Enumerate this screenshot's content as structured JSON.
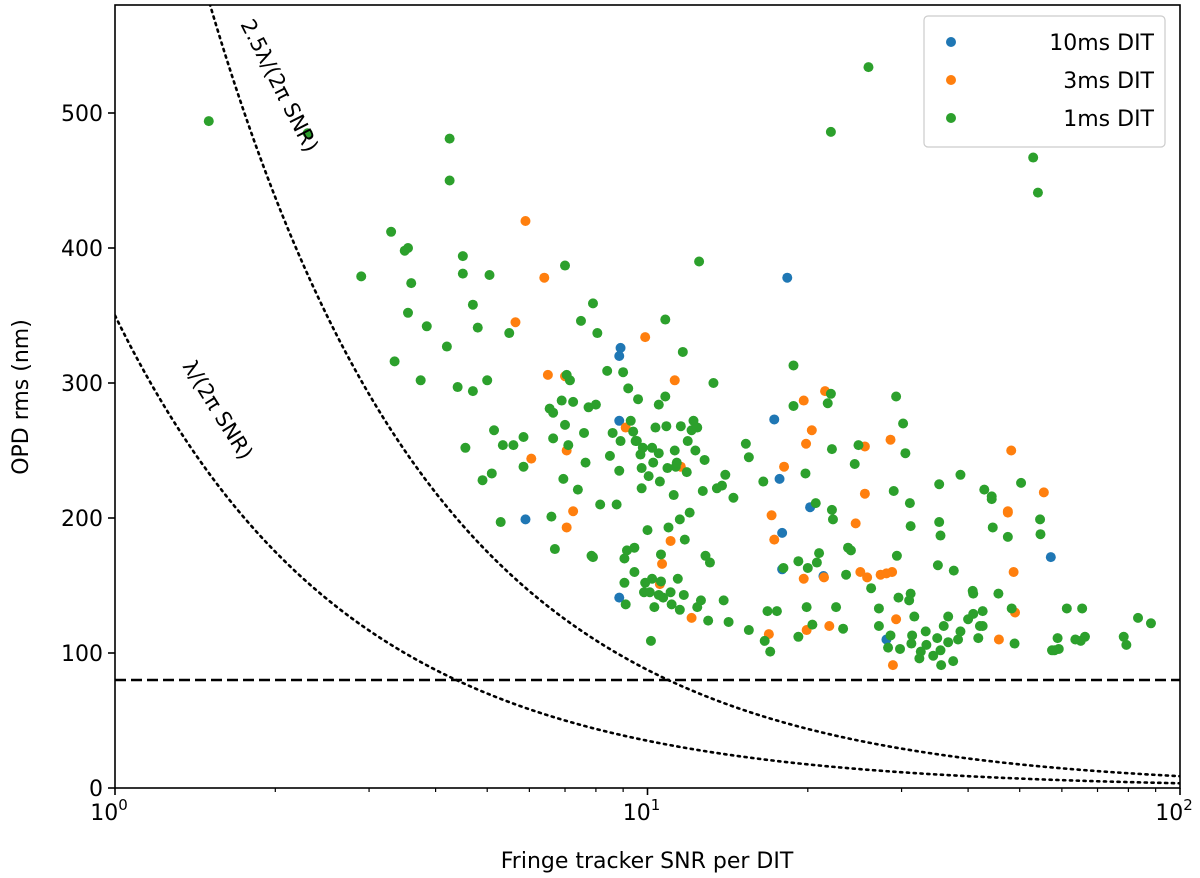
{
  "chart_data": {
    "type": "scatter",
    "title": "",
    "xlabel": "Fringe tracker SNR per DIT",
    "ylabel": "OPD rms (nm)",
    "xscale": "log",
    "xlim": [
      1,
      100
    ],
    "ylim": [
      0,
      580
    ],
    "x_ticks": [
      {
        "value": 1,
        "base": "10",
        "exp": "0"
      },
      {
        "value": 10,
        "base": "10",
        "exp": "1"
      },
      {
        "value": 100,
        "base": "10",
        "exp": "2"
      }
    ],
    "y_ticks": [
      0,
      100,
      200,
      300,
      400,
      500
    ],
    "y_tick_labels": [
      "0",
      "100",
      "200",
      "300",
      "400",
      "500"
    ],
    "legend": {
      "placement": "upper-right",
      "entries": [
        "10ms DIT",
        "3ms DIT",
        "1ms DIT"
      ]
    },
    "reference_lines": [
      {
        "name": "noise-floor",
        "style": "dashed",
        "y": 80
      },
      {
        "name": "lambda-over-2pi-snr",
        "style": "dotted",
        "formula": "350/SNR",
        "label": "λ/(2π SNR)"
      },
      {
        "name": "2.5lambda-over-2pi-snr",
        "style": "dotted",
        "formula": "875/SNR",
        "label": "2.5λ/(2π SNR)"
      }
    ],
    "colors": {
      "10ms DIT": "#1f77b4",
      "3ms DIT": "#ff7f0e",
      "1ms DIT": "#2ca02c"
    },
    "series": [
      {
        "name": "10ms DIT",
        "points": [
          [
            8.9,
            326
          ],
          [
            8.85,
            320
          ],
          [
            8.85,
            272
          ],
          [
            8.85,
            141
          ],
          [
            5.9,
            199
          ],
          [
            17.7,
            229
          ],
          [
            17.3,
            273
          ],
          [
            18.3,
            378
          ],
          [
            17.9,
            162
          ],
          [
            17.9,
            189
          ],
          [
            20.2,
            208
          ],
          [
            21.4,
            157
          ],
          [
            28.1,
            110
          ],
          [
            57.2,
            171
          ]
        ]
      },
      {
        "name": "3ms DIT",
        "points": [
          [
            5.9,
            420
          ],
          [
            6.4,
            378
          ],
          [
            5.65,
            345
          ],
          [
            6.05,
            244
          ],
          [
            6.5,
            306
          ],
          [
            7.05,
            250
          ],
          [
            7.05,
            193
          ],
          [
            7.25,
            205
          ],
          [
            7.0,
            305
          ],
          [
            9.1,
            267
          ],
          [
            9.9,
            334
          ],
          [
            10.55,
            151
          ],
          [
            10.65,
            166
          ],
          [
            11.05,
            183
          ],
          [
            11.25,
            302
          ],
          [
            11.55,
            238
          ],
          [
            12.1,
            126
          ],
          [
            16.9,
            114
          ],
          [
            17.1,
            202
          ],
          [
            17.3,
            184
          ],
          [
            18.05,
            238
          ],
          [
            19.65,
            287
          ],
          [
            19.65,
            155
          ],
          [
            19.9,
            117
          ],
          [
            19.85,
            255
          ],
          [
            20.35,
            265
          ],
          [
            21.45,
            156
          ],
          [
            21.55,
            294
          ],
          [
            21.95,
            120
          ],
          [
            24.6,
            196
          ],
          [
            25.1,
            160
          ],
          [
            25.6,
            218
          ],
          [
            25.85,
            156
          ],
          [
            25.6,
            253
          ],
          [
            27.4,
            158
          ],
          [
            28.1,
            159
          ],
          [
            28.6,
            258
          ],
          [
            28.8,
            160
          ],
          [
            28.9,
            91
          ],
          [
            29.3,
            125
          ],
          [
            45.7,
            110
          ],
          [
            47.5,
            204
          ],
          [
            47.5,
            205
          ],
          [
            48.2,
            250
          ],
          [
            48.7,
            160
          ],
          [
            49.0,
            130
          ],
          [
            55.5,
            219
          ]
        ]
      },
      {
        "name": "1ms DIT",
        "points": [
          [
            1.5,
            494
          ],
          [
            2.3,
            485
          ],
          [
            2.9,
            379
          ],
          [
            3.3,
            412
          ],
          [
            3.35,
            316
          ],
          [
            3.5,
            398
          ],
          [
            3.55,
            400
          ],
          [
            3.6,
            374
          ],
          [
            3.55,
            352
          ],
          [
            3.75,
            302
          ],
          [
            3.85,
            342
          ],
          [
            4.2,
            327
          ],
          [
            4.25,
            481
          ],
          [
            4.25,
            450
          ],
          [
            4.4,
            297
          ],
          [
            4.5,
            394
          ],
          [
            4.5,
            381
          ],
          [
            4.55,
            252
          ],
          [
            4.7,
            294
          ],
          [
            4.7,
            358
          ],
          [
            4.8,
            341
          ],
          [
            4.9,
            228
          ],
          [
            5.0,
            302
          ],
          [
            5.05,
            380
          ],
          [
            5.15,
            265
          ],
          [
            5.1,
            233
          ],
          [
            5.3,
            197
          ],
          [
            5.35,
            254
          ],
          [
            5.5,
            337
          ],
          [
            5.6,
            254
          ],
          [
            5.85,
            260
          ],
          [
            5.85,
            238
          ],
          [
            6.55,
            281
          ],
          [
            6.6,
            201
          ],
          [
            6.65,
            278
          ],
          [
            6.65,
            259
          ],
          [
            6.7,
            177
          ],
          [
            6.9,
            287
          ],
          [
            6.95,
            229
          ],
          [
            7.0,
            387
          ],
          [
            7.0,
            269
          ],
          [
            7.05,
            306
          ],
          [
            7.1,
            254
          ],
          [
            7.15,
            302
          ],
          [
            7.25,
            286
          ],
          [
            7.4,
            221
          ],
          [
            7.5,
            346
          ],
          [
            7.6,
            263
          ],
          [
            7.65,
            241
          ],
          [
            7.75,
            282
          ],
          [
            7.85,
            172
          ],
          [
            7.9,
            171
          ],
          [
            7.9,
            359
          ],
          [
            8.0,
            284
          ],
          [
            8.05,
            337
          ],
          [
            8.15,
            210
          ],
          [
            8.4,
            309
          ],
          [
            8.5,
            246
          ],
          [
            8.6,
            263
          ],
          [
            8.75,
            210
          ],
          [
            8.85,
            235
          ],
          [
            8.9,
            257
          ],
          [
            9.0,
            308
          ],
          [
            9.05,
            170
          ],
          [
            9.05,
            152
          ],
          [
            9.1,
            136
          ],
          [
            9.15,
            176
          ],
          [
            9.2,
            296
          ],
          [
            9.3,
            272
          ],
          [
            9.4,
            264
          ],
          [
            9.5,
            257
          ],
          [
            9.55,
            257
          ],
          [
            9.45,
            160
          ],
          [
            9.45,
            178
          ],
          [
            9.6,
            288
          ],
          [
            9.7,
            247
          ],
          [
            9.75,
            222
          ],
          [
            9.75,
            237
          ],
          [
            9.8,
            252
          ],
          [
            9.85,
            145
          ],
          [
            9.9,
            152
          ],
          [
            10.0,
            191
          ],
          [
            10.05,
            231
          ],
          [
            10.1,
            145
          ],
          [
            10.15,
            109
          ],
          [
            10.25,
            241
          ],
          [
            10.2,
            155
          ],
          [
            10.2,
            252
          ],
          [
            10.3,
            134
          ],
          [
            10.35,
            267
          ],
          [
            10.5,
            284
          ],
          [
            10.5,
            248
          ],
          [
            10.55,
            227
          ],
          [
            10.5,
            143
          ],
          [
            10.6,
            153
          ],
          [
            10.6,
            173
          ],
          [
            10.7,
            141
          ],
          [
            10.8,
            347
          ],
          [
            10.8,
            290
          ],
          [
            10.85,
            268
          ],
          [
            10.9,
            237
          ],
          [
            10.95,
            193
          ],
          [
            11.05,
            145
          ],
          [
            11.1,
            136
          ],
          [
            11.2,
            217
          ],
          [
            11.25,
            250
          ],
          [
            11.3,
            238
          ],
          [
            11.35,
            241
          ],
          [
            11.4,
            155
          ],
          [
            11.5,
            199
          ],
          [
            11.5,
            132
          ],
          [
            11.55,
            268
          ],
          [
            11.65,
            323
          ],
          [
            11.7,
            143
          ],
          [
            11.75,
            184
          ],
          [
            11.85,
            234
          ],
          [
            11.9,
            257
          ],
          [
            12.0,
            204
          ],
          [
            12.1,
            265
          ],
          [
            12.2,
            272
          ],
          [
            12.3,
            250
          ],
          [
            12.4,
            267
          ],
          [
            12.5,
            390
          ],
          [
            12.4,
            134
          ],
          [
            12.6,
            139
          ],
          [
            12.7,
            220
          ],
          [
            12.8,
            243
          ],
          [
            12.85,
            172
          ],
          [
            13.1,
            167
          ],
          [
            13.0,
            124
          ],
          [
            13.3,
            300
          ],
          [
            13.5,
            222
          ],
          [
            13.8,
            224
          ],
          [
            14.0,
            232
          ],
          [
            13.9,
            139
          ],
          [
            14.2,
            123
          ],
          [
            14.5,
            215
          ],
          [
            15.3,
            255
          ],
          [
            15.5,
            245
          ],
          [
            16.5,
            227
          ],
          [
            16.8,
            131
          ],
          [
            17.0,
            101
          ],
          [
            17.5,
            131
          ],
          [
            18.8,
            313
          ],
          [
            18.8,
            283
          ],
          [
            19.2,
            112
          ],
          [
            19.8,
            233
          ],
          [
            19.9,
            134
          ],
          [
            20.0,
            163
          ],
          [
            20.4,
            121
          ],
          [
            20.7,
            211
          ],
          [
            20.8,
            167
          ],
          [
            21.0,
            174
          ],
          [
            21.8,
            285
          ],
          [
            22.2,
            251
          ],
          [
            22.2,
            206
          ],
          [
            22.1,
            292
          ],
          [
            22.3,
            199
          ],
          [
            22.6,
            134
          ],
          [
            23.3,
            118
          ],
          [
            23.8,
            178
          ],
          [
            24.1,
            176
          ],
          [
            24.5,
            240
          ],
          [
            24.9,
            254
          ],
          [
            26.3,
            148
          ],
          [
            28.3,
            104
          ],
          [
            28.6,
            113
          ],
          [
            29.0,
            220
          ],
          [
            29.3,
            290
          ],
          [
            29.4,
            172
          ],
          [
            29.6,
            141
          ],
          [
            29.8,
            103
          ],
          [
            30.2,
            270
          ],
          [
            30.5,
            248
          ],
          [
            31.1,
            211
          ],
          [
            31.2,
            194
          ],
          [
            31.2,
            144
          ],
          [
            31.4,
            113
          ],
          [
            31.3,
            107
          ],
          [
            31.7,
            127
          ],
          [
            32.4,
            96
          ],
          [
            32.6,
            101
          ],
          [
            33.3,
            116
          ],
          [
            34.4,
            98
          ],
          [
            35.0,
            111
          ],
          [
            35.3,
            225
          ],
          [
            35.3,
            197
          ],
          [
            35.6,
            91
          ],
          [
            35.5,
            102
          ],
          [
            36.0,
            120
          ],
          [
            36.7,
            127
          ],
          [
            37.5,
            94
          ],
          [
            38.7,
            232
          ],
          [
            38.3,
            110
          ],
          [
            38.7,
            116
          ],
          [
            40.0,
            125
          ],
          [
            40.8,
            146
          ],
          [
            40.9,
            129
          ],
          [
            41.8,
            111
          ],
          [
            42.1,
            120
          ],
          [
            42.6,
            131
          ],
          [
            42.6,
            120
          ],
          [
            42.9,
            221
          ],
          [
            44.3,
            216
          ],
          [
            44.3,
            214
          ],
          [
            44.5,
            193
          ],
          [
            45.6,
            144
          ],
          [
            47.5,
            186
          ],
          [
            48.3,
            133
          ],
          [
            48.9,
            107
          ],
          [
            50.3,
            226
          ],
          [
            53.0,
            467
          ],
          [
            54.1,
            441
          ],
          [
            54.6,
            199
          ],
          [
            57.5,
            102
          ],
          [
            58.1,
            102
          ],
          [
            58.9,
            111
          ],
          [
            59.2,
            103
          ],
          [
            61.3,
            133
          ],
          [
            63.6,
            110
          ],
          [
            65.1,
            109
          ],
          [
            65.5,
            133
          ],
          [
            66.3,
            112
          ],
          [
            78.4,
            112
          ],
          [
            79.3,
            106
          ],
          [
            83.4,
            126
          ],
          [
            88.2,
            122
          ],
          [
            26.0,
            534
          ],
          [
            22.1,
            486
          ],
          [
            27.2,
            133
          ],
          [
            35.1,
            165
          ],
          [
            37.6,
            161
          ],
          [
            27.2,
            120
          ],
          [
            31.0,
            139
          ],
          [
            23.6,
            158
          ],
          [
            35.5,
            187
          ],
          [
            54.7,
            188
          ],
          [
            40.9,
            144
          ],
          [
            33.4,
            106
          ],
          [
            36.7,
            108
          ],
          [
            19.2,
            168
          ],
          [
            18.0,
            163
          ],
          [
            15.5,
            117
          ],
          [
            16.6,
            109
          ]
        ]
      }
    ]
  }
}
